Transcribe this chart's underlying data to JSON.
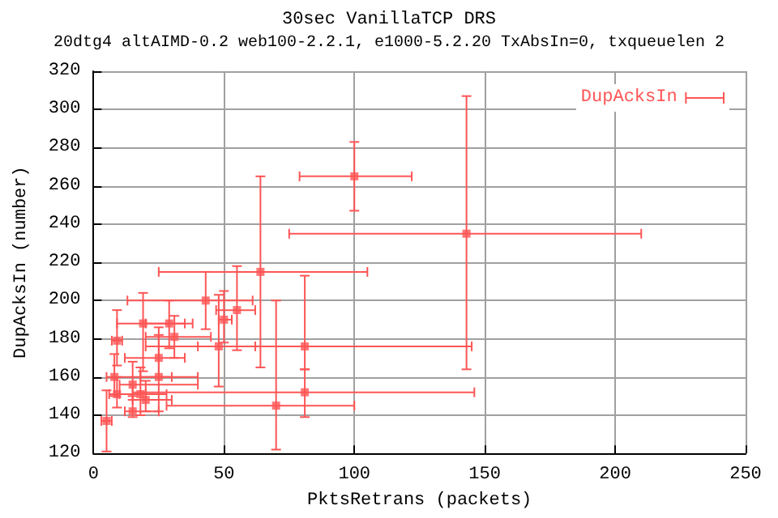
{
  "chart_data": {
    "type": "scatter",
    "title": "30sec VanillaTCP DRS",
    "subtitle": "20dtg4 altAIMD-0.2 web100-2.2.1, e1000-5.2.20 TxAbsIn=0, txqueuelen 2",
    "xlabel": "PktsRetrans (packets)",
    "ylabel": "DupAcksIn (number)",
    "series": [
      {
        "name": "DupAcksIn",
        "color": "#ff5555",
        "x": [
          100,
          143,
          5,
          81,
          81,
          70,
          64,
          55,
          50,
          43,
          48,
          9,
          8,
          19,
          31,
          15,
          15,
          20,
          25,
          25,
          9,
          18,
          29
        ],
        "values": [
          265,
          235,
          137,
          176,
          152,
          145,
          215,
          195,
          190,
          200,
          176,
          179,
          160,
          188,
          181,
          156,
          142,
          148,
          160,
          170,
          151,
          151,
          188
        ],
        "xerrors": [
          [
            79,
            122
          ],
          [
            75,
            210
          ],
          [
            3,
            7
          ],
          [
            40,
            145
          ],
          [
            15,
            146
          ],
          [
            28,
            100
          ],
          [
            25,
            105
          ],
          [
            47,
            62
          ],
          [
            48,
            53
          ],
          [
            13,
            61
          ],
          [
            20,
            62
          ],
          [
            7,
            11
          ],
          [
            5,
            30
          ],
          [
            9,
            35
          ],
          [
            20,
            45
          ],
          [
            10,
            40
          ],
          [
            12,
            25
          ],
          [
            15,
            30
          ],
          [
            18,
            40
          ],
          [
            12,
            35
          ],
          [
            6,
            20
          ],
          [
            10,
            28
          ],
          [
            20,
            38
          ]
        ],
        "errors": [
          [
            247,
            283
          ],
          [
            164,
            307
          ],
          [
            121,
            153
          ],
          [
            164,
            213
          ],
          [
            139,
            164
          ],
          [
            122,
            200
          ],
          [
            165,
            265
          ],
          [
            174,
            218
          ],
          [
            178,
            205
          ],
          [
            185,
            215
          ],
          [
            155,
            203
          ],
          [
            166,
            195
          ],
          [
            150,
            172
          ],
          [
            163,
            204
          ],
          [
            170,
            192
          ],
          [
            148,
            168
          ],
          [
            139,
            150
          ],
          [
            142,
            158
          ],
          [
            142,
            186
          ],
          [
            160,
            182
          ],
          [
            144,
            160
          ],
          [
            140,
            165
          ],
          [
            175,
            200
          ]
        ]
      }
    ],
    "xlim": [
      0,
      250
    ],
    "xticks": [
      0,
      50,
      100,
      150,
      200,
      250
    ],
    "ylim": [
      120,
      320
    ],
    "yticks": [
      120,
      140,
      160,
      180,
      200,
      220,
      240,
      260,
      280,
      300,
      320
    ],
    "grid": true,
    "legend": "top right",
    "marker": "square"
  }
}
